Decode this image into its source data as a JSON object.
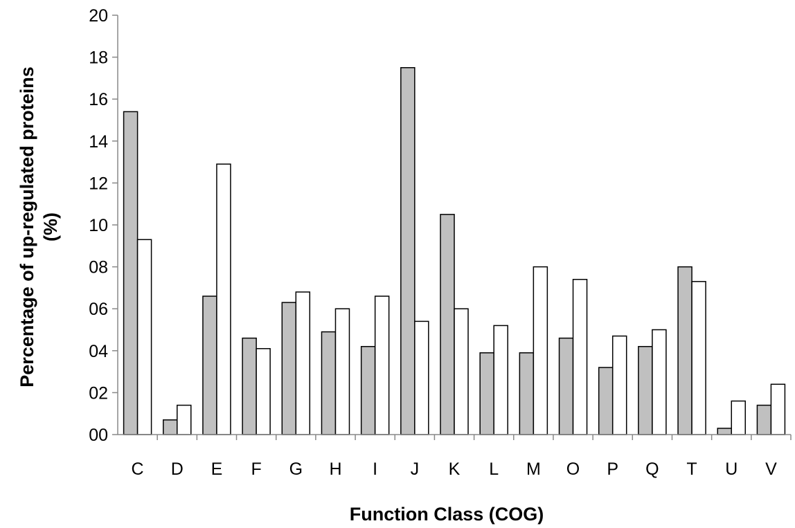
{
  "chart_data": {
    "type": "bar",
    "title": "",
    "xlabel": "Function Class (COG)",
    "ylabel_line1": "Percentage of up-regulated proteins",
    "ylabel_line2": "(%)",
    "categories": [
      "C",
      "D",
      "E",
      "F",
      "G",
      "H",
      "I",
      "J",
      "K",
      "L",
      "M",
      "O",
      "P",
      "Q",
      "T",
      "U",
      "V"
    ],
    "series": [
      {
        "color": "#c0c0c0",
        "values": [
          15.4,
          0.7,
          6.6,
          4.6,
          6.3,
          4.9,
          4.2,
          17.5,
          10.5,
          3.9,
          3.9,
          4.6,
          3.2,
          4.2,
          8.0,
          0.3,
          1.4
        ]
      },
      {
        "color": "#ffffff",
        "values": [
          9.3,
          1.4,
          12.9,
          4.1,
          6.8,
          6.0,
          6.6,
          5.4,
          6.0,
          5.2,
          8.0,
          7.4,
          4.7,
          5.0,
          7.3,
          1.6,
          2.4
        ]
      }
    ],
    "ylim": [
      0,
      20
    ],
    "yticks": [
      "00",
      "02",
      "04",
      "06",
      "08",
      "10",
      "12",
      "14",
      "16",
      "18",
      "20"
    ],
    "grid": false,
    "legend": "none"
  }
}
